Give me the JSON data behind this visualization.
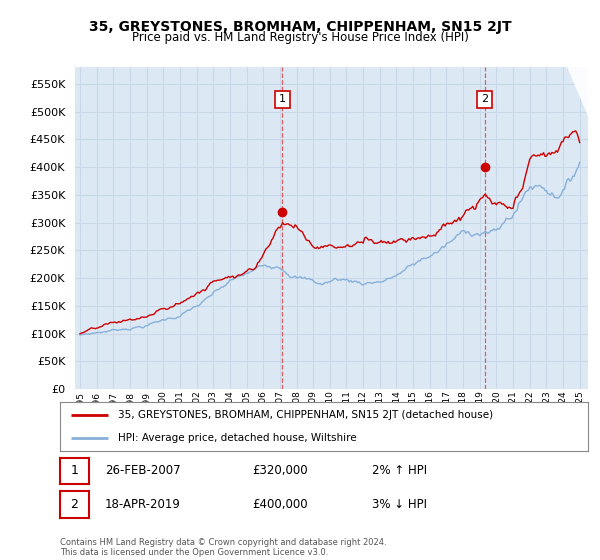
{
  "title": "35, GREYSTONES, BROMHAM, CHIPPENHAM, SN15 2JT",
  "subtitle": "Price paid vs. HM Land Registry's House Price Index (HPI)",
  "background_color": "#ffffff",
  "plot_bg_color": "#dce9f5",
  "grid_color": "#c8d8e8",
  "ylim": [
    0,
    580000
  ],
  "yticks": [
    0,
    50000,
    100000,
    150000,
    200000,
    250000,
    300000,
    350000,
    400000,
    450000,
    500000,
    550000
  ],
  "legend_red": "35, GREYSTONES, BROMHAM, CHIPPENHAM, SN15 2JT (detached house)",
  "legend_blue": "HPI: Average price, detached house, Wiltshire",
  "annot1_date": "26-FEB-2007",
  "annot1_price": "£320,000",
  "annot1_hpi": "2% ↑ HPI",
  "annot2_date": "18-APR-2019",
  "annot2_price": "£400,000",
  "annot2_hpi": "3% ↓ HPI",
  "footer": "Contains HM Land Registry data © Crown copyright and database right 2024.\nThis data is licensed under the Open Government Licence v3.0.",
  "red_color": "#cc0000",
  "blue_color": "#88b0d8",
  "vline_color": "#dd4444",
  "marker_box_color": "#cc0000",
  "transaction1_x": 2007.15,
  "transaction1_y": 320000,
  "transaction2_x": 2019.3,
  "transaction2_y": 400000,
  "xtick_years": [
    1995,
    1996,
    1997,
    1998,
    1999,
    2000,
    2001,
    2002,
    2003,
    2004,
    2005,
    2006,
    2007,
    2008,
    2009,
    2010,
    2011,
    2012,
    2013,
    2014,
    2015,
    2016,
    2017,
    2018,
    2019,
    2020,
    2021,
    2022,
    2023,
    2024,
    2025
  ]
}
